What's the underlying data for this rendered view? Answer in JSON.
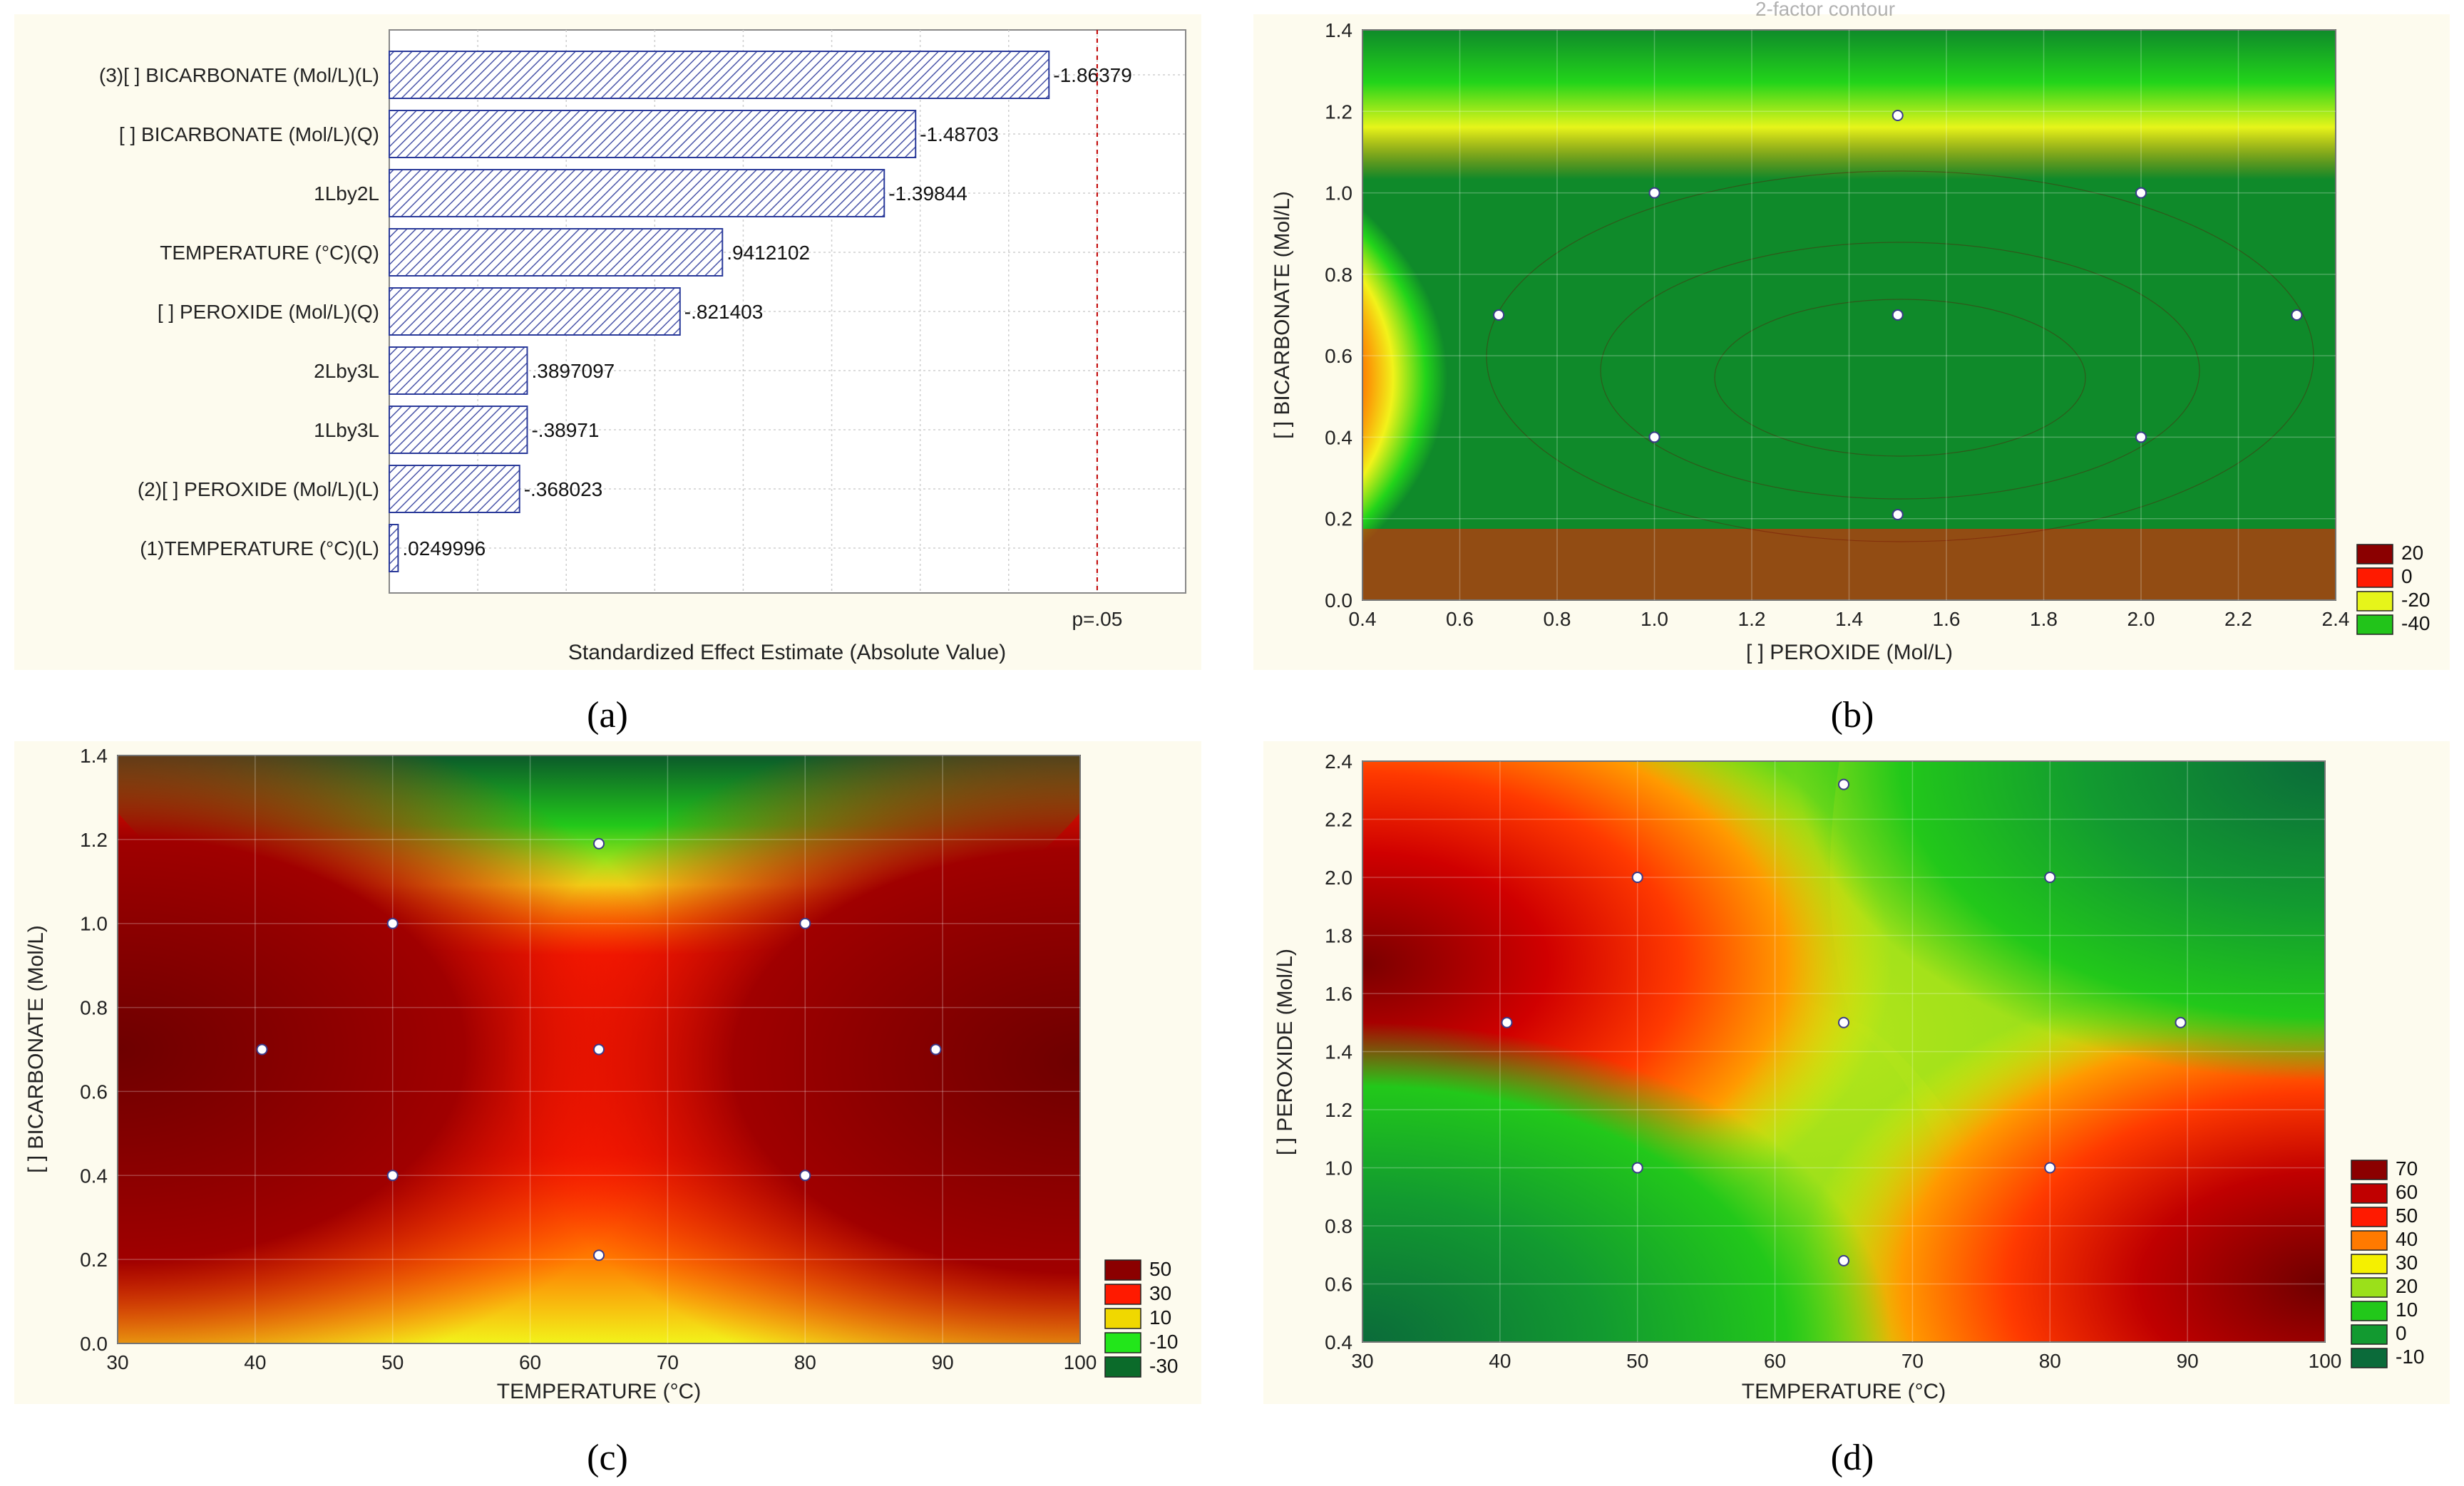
{
  "chart_data": [
    {
      "id": "a",
      "type": "bar",
      "orientation": "horizontal",
      "caption": "(a)",
      "xlabel": "Standardized Effect Estimate (Absolute Value)",
      "ylabel": "",
      "xlim": [
        0,
        2.25
      ],
      "pvalue_line": {
        "value": 2.0,
        "label": "p=.05"
      },
      "categories": [
        "(3)[ ] BICARBONATE (Mol/L)(L)",
        "[ ] BICARBONATE (Mol/L)(Q)",
        "1Lby2L",
        "TEMPERATURE (°C)(Q)",
        "[ ] PEROXIDE (Mol/L)(Q)",
        "2Lby3L",
        "1Lby3L",
        "(2)[ ] PEROXIDE (Mol/L)(L)",
        "(1)TEMPERATURE (°C)(L)"
      ],
      "values": [
        1.86379,
        1.48703,
        1.39844,
        0.9412102,
        0.821403,
        0.3897097,
        0.38971,
        0.368023,
        0.0249996
      ],
      "value_labels": [
        "-1.86379",
        "-1.48703",
        "-1.39844",
        ".9412102",
        "-.821403",
        ".3897097",
        "-.38971",
        "-.368023",
        ".0249996"
      ]
    },
    {
      "id": "b",
      "type": "contour",
      "caption": "(b)",
      "title": "2-factor contour",
      "xlabel": "[ ] PEROXIDE (Mol/L)",
      "ylabel": "[ ] BICARBONATE (Mol/L)",
      "xlim": [
        0.4,
        2.4
      ],
      "ylim": [
        0.0,
        1.4
      ],
      "xticks": [
        "0.4",
        "0.6",
        "0.8",
        "1.0",
        "1.2",
        "1.4",
        "1.6",
        "1.8",
        "2.0",
        "2.2",
        "2.4"
      ],
      "yticks": [
        "0.0",
        "0.2",
        "0.4",
        "0.6",
        "0.8",
        "1.0",
        "1.2",
        "1.4"
      ],
      "legend": [
        {
          "label": "20",
          "color": "#8b0000"
        },
        {
          "label": "0",
          "color": "#ff1a00"
        },
        {
          "label": "-20",
          "color": "#e6f51a"
        },
        {
          "label": "-40",
          "color": "#22c41a"
        }
      ],
      "design_points": [
        [
          0.68,
          0.7
        ],
        [
          1.0,
          1.0
        ],
        [
          1.0,
          0.4
        ],
        [
          1.5,
          1.19
        ],
        [
          1.5,
          0.7
        ],
        [
          1.5,
          0.21
        ],
        [
          2.0,
          1.0
        ],
        [
          2.0,
          0.4
        ],
        [
          2.32,
          0.7
        ]
      ]
    },
    {
      "id": "c",
      "type": "contour",
      "caption": "(c)",
      "xlabel": "TEMPERATURE (°C)",
      "ylabel": "[ ] BICARBONATE (Mol/L)",
      "xlim": [
        30,
        100
      ],
      "ylim": [
        0.0,
        1.4
      ],
      "xticks": [
        "30",
        "40",
        "50",
        "60",
        "70",
        "80",
        "90",
        "100"
      ],
      "yticks": [
        "0.0",
        "0.2",
        "0.4",
        "0.6",
        "0.8",
        "1.0",
        "1.2",
        "1.4"
      ],
      "legend": [
        {
          "label": "50",
          "color": "#8b0000"
        },
        {
          "label": "30",
          "color": "#ff1a00"
        },
        {
          "label": "10",
          "color": "#f0d800"
        },
        {
          "label": "-10",
          "color": "#22e61a"
        },
        {
          "label": "-30",
          "color": "#0b6b2a"
        }
      ],
      "design_points": [
        [
          40.5,
          0.7
        ],
        [
          50,
          1.0
        ],
        [
          50,
          0.4
        ],
        [
          65,
          1.19
        ],
        [
          65,
          0.7
        ],
        [
          65,
          0.21
        ],
        [
          80,
          1.0
        ],
        [
          80,
          0.4
        ],
        [
          89.5,
          0.7
        ]
      ]
    },
    {
      "id": "d",
      "type": "contour",
      "caption": "(d)",
      "xlabel": "TEMPERATURE (°C)",
      "ylabel": "[ ] PEROXIDE (Mol/L)",
      "xlim": [
        30,
        100
      ],
      "ylim": [
        0.4,
        2.4
      ],
      "xticks": [
        "30",
        "40",
        "50",
        "60",
        "70",
        "80",
        "90",
        "100"
      ],
      "yticks": [
        "0.4",
        "0.6",
        "0.8",
        "1.0",
        "1.2",
        "1.4",
        "1.6",
        "1.8",
        "2.0",
        "2.2",
        "2.4"
      ],
      "legend": [
        {
          "label": "70",
          "color": "#8b0000"
        },
        {
          "label": "60",
          "color": "#c00000"
        },
        {
          "label": "50",
          "color": "#ff1a00"
        },
        {
          "label": "40",
          "color": "#ff7a00"
        },
        {
          "label": "30",
          "color": "#f5f000"
        },
        {
          "label": "20",
          "color": "#9be01a"
        },
        {
          "label": "10",
          "color": "#22c81a"
        },
        {
          "label": "0",
          "color": "#129a30"
        },
        {
          "label": "-10",
          "color": "#0b6b3a"
        }
      ],
      "design_points": [
        [
          40.5,
          1.5
        ],
        [
          50,
          2.0
        ],
        [
          50,
          1.0
        ],
        [
          65,
          2.32
        ],
        [
          65,
          1.5
        ],
        [
          65,
          0.68
        ],
        [
          80,
          2.0
        ],
        [
          80,
          1.0
        ],
        [
          89.5,
          1.5
        ]
      ]
    }
  ]
}
